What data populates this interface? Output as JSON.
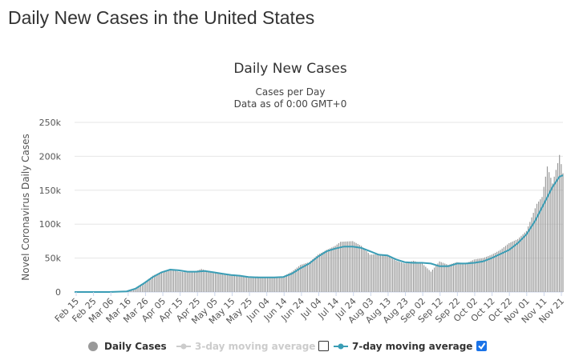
{
  "page": {
    "heading": "Daily New Cases in the United States"
  },
  "colors": {
    "bars": "#999999",
    "line": "#3a9db5",
    "grid": "#e6e6e6",
    "disabled": "#cccccc",
    "checkbox_checked": "#1a73e8"
  },
  "legend": [
    {
      "label": "Daily Cases",
      "icon": "circle-icon",
      "active": true
    },
    {
      "label": "3-day moving average",
      "icon": "line-marker-icon",
      "active": false,
      "checkbox": false
    },
    {
      "label": "7-day moving average",
      "icon": "line-marker-icon",
      "active": true,
      "checkbox": true
    }
  ],
  "chart_data": {
    "type": "bar",
    "title": "Daily New Cases",
    "subtitle": [
      "Cases per Day",
      "Data as of 0:00 GMT+0"
    ],
    "ylabel": "Novel Coronavirus Daily Cases",
    "ylim": [
      0,
      250000
    ],
    "yticks": [
      "0",
      "50k",
      "100k",
      "150k",
      "200k",
      "250k"
    ],
    "xtick_labels": [
      "Feb 15",
      "Feb 25",
      "Mar 06",
      "Mar 16",
      "Mar 26",
      "Apr 05",
      "Apr 15",
      "Apr 25",
      "May 05",
      "May 15",
      "May 25",
      "Jun 04",
      "Jun 14",
      "Jun 24",
      "Jul 04",
      "Jul 14",
      "Jul 24",
      "Aug 03",
      "Aug 13",
      "Aug 23",
      "Sep 02",
      "Sep 12",
      "Sep 22",
      "Oct 02",
      "Oct 12",
      "Oct 22",
      "Nov 01",
      "Nov 11",
      "Nov 21"
    ],
    "x_start": "2020-02-15",
    "x_end": "2020-11-22",
    "legend_placement": "bottom",
    "grid": true,
    "series": [
      {
        "name": "Daily Cases",
        "type": "bar",
        "points": [
          [
            "2020-02-15",
            0
          ],
          [
            "2020-03-06",
            100
          ],
          [
            "2020-03-16",
            1500
          ],
          [
            "2020-03-21",
            6000
          ],
          [
            "2020-03-26",
            14000
          ],
          [
            "2020-03-31",
            24000
          ],
          [
            "2020-04-05",
            30000
          ],
          [
            "2020-04-10",
            33000
          ],
          [
            "2020-04-15",
            30000
          ],
          [
            "2020-04-20",
            29000
          ],
          [
            "2020-04-25",
            31000
          ],
          [
            "2020-04-28",
            34000
          ],
          [
            "2020-05-05",
            28000
          ],
          [
            "2020-05-10",
            27000
          ],
          [
            "2020-05-15",
            26000
          ],
          [
            "2020-05-20",
            25000
          ],
          [
            "2020-05-25",
            21000
          ],
          [
            "2020-05-30",
            23000
          ],
          [
            "2020-06-04",
            21000
          ],
          [
            "2020-06-09",
            22000
          ],
          [
            "2020-06-14",
            23000
          ],
          [
            "2020-06-19",
            30000
          ],
          [
            "2020-06-24",
            40000
          ],
          [
            "2020-06-29",
            44000
          ],
          [
            "2020-07-04",
            55000
          ],
          [
            "2020-07-09",
            62000
          ],
          [
            "2020-07-14",
            68000
          ],
          [
            "2020-07-17",
            74000
          ],
          [
            "2020-07-24",
            75000
          ],
          [
            "2020-07-29",
            68000
          ],
          [
            "2020-08-03",
            55000
          ],
          [
            "2020-08-08",
            56000
          ],
          [
            "2020-08-13",
            54000
          ],
          [
            "2020-08-18",
            46000
          ],
          [
            "2020-08-23",
            42000
          ],
          [
            "2020-08-28",
            46000
          ],
          [
            "2020-09-02",
            42000
          ],
          [
            "2020-09-07",
            30000
          ],
          [
            "2020-09-12",
            45000
          ],
          [
            "2020-09-17",
            40000
          ],
          [
            "2020-09-22",
            44000
          ],
          [
            "2020-09-27",
            42000
          ],
          [
            "2020-10-02",
            48000
          ],
          [
            "2020-10-07",
            50000
          ],
          [
            "2020-10-12",
            55000
          ],
          [
            "2020-10-17",
            62000
          ],
          [
            "2020-10-22",
            72000
          ],
          [
            "2020-10-27",
            78000
          ],
          [
            "2020-11-01",
            90000
          ],
          [
            "2020-11-04",
            110000
          ],
          [
            "2020-11-07",
            130000
          ],
          [
            "2020-11-10",
            140000
          ],
          [
            "2020-11-13",
            185000
          ],
          [
            "2020-11-16",
            160000
          ],
          [
            "2020-11-19",
            190000
          ],
          [
            "2020-11-20",
            202000
          ],
          [
            "2020-11-22",
            175000
          ]
        ]
      },
      {
        "name": "7-day moving average",
        "type": "line",
        "points": [
          [
            "2020-02-15",
            0
          ],
          [
            "2020-03-06",
            0
          ],
          [
            "2020-03-16",
            1000
          ],
          [
            "2020-03-21",
            5000
          ],
          [
            "2020-03-26",
            13000
          ],
          [
            "2020-03-31",
            22000
          ],
          [
            "2020-04-05",
            29000
          ],
          [
            "2020-04-10",
            33000
          ],
          [
            "2020-04-15",
            32000
          ],
          [
            "2020-04-20",
            30000
          ],
          [
            "2020-04-25",
            30000
          ],
          [
            "2020-04-30",
            31000
          ],
          [
            "2020-05-05",
            29000
          ],
          [
            "2020-05-10",
            27000
          ],
          [
            "2020-05-15",
            25000
          ],
          [
            "2020-05-20",
            24000
          ],
          [
            "2020-05-25",
            22000
          ],
          [
            "2020-05-30",
            21500
          ],
          [
            "2020-06-04",
            21500
          ],
          [
            "2020-06-09",
            21500
          ],
          [
            "2020-06-14",
            22000
          ],
          [
            "2020-06-19",
            27000
          ],
          [
            "2020-06-24",
            35000
          ],
          [
            "2020-06-29",
            42000
          ],
          [
            "2020-07-04",
            52000
          ],
          [
            "2020-07-09",
            60000
          ],
          [
            "2020-07-14",
            64000
          ],
          [
            "2020-07-19",
            67000
          ],
          [
            "2020-07-24",
            67000
          ],
          [
            "2020-07-29",
            65000
          ],
          [
            "2020-08-03",
            60000
          ],
          [
            "2020-08-08",
            55000
          ],
          [
            "2020-08-13",
            54000
          ],
          [
            "2020-08-18",
            48000
          ],
          [
            "2020-08-23",
            44000
          ],
          [
            "2020-08-28",
            43000
          ],
          [
            "2020-09-02",
            43000
          ],
          [
            "2020-09-07",
            42000
          ],
          [
            "2020-09-12",
            38000
          ],
          [
            "2020-09-17",
            38000
          ],
          [
            "2020-09-22",
            42000
          ],
          [
            "2020-09-27",
            42000
          ],
          [
            "2020-10-02",
            43000
          ],
          [
            "2020-10-07",
            45000
          ],
          [
            "2020-10-12",
            50000
          ],
          [
            "2020-10-17",
            56000
          ],
          [
            "2020-10-22",
            62000
          ],
          [
            "2020-10-27",
            72000
          ],
          [
            "2020-11-01",
            85000
          ],
          [
            "2020-11-06",
            105000
          ],
          [
            "2020-11-11",
            130000
          ],
          [
            "2020-11-16",
            155000
          ],
          [
            "2020-11-20",
            170000
          ],
          [
            "2020-11-22",
            172000
          ]
        ]
      }
    ]
  }
}
